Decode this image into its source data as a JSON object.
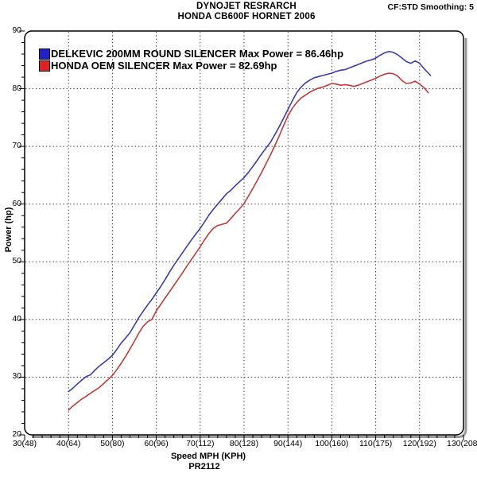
{
  "header": {
    "title": "DYNOJET RESRARCH",
    "subtitle": "HONDA CB600F HORNET 2006",
    "smoothing": "CF:STD Smoothing: 5"
  },
  "legend": [
    {
      "label": "DELKEVIC 200MM ROUND SILENCER Max Power = 86.46hp",
      "swatch_color": "#2121c8"
    },
    {
      "label": "HONDA OEM SILENCER Max Power = 82.69hp",
      "swatch_color": "#e02222"
    }
  ],
  "footer": {
    "xlabel": "Speed MPH (KPH)",
    "code": "PR2112"
  },
  "chart_data": {
    "type": "line",
    "title": "DYNOJET RESRARCH",
    "subtitle": "HONDA CB600F HORNET 2006",
    "xlabel": "Speed MPH (KPH)",
    "ylabel": "Power (hp)",
    "xlim": [
      30,
      130
    ],
    "ylim": [
      20,
      90
    ],
    "x_major_ticks": [
      30,
      40,
      50,
      60,
      70,
      80,
      90,
      100,
      110,
      120,
      130
    ],
    "x_tick_labels": [
      "30(48)",
      "40(64)",
      "50(80)",
      "60(96)",
      "70(112)",
      "80(128)",
      "90(144)",
      "100(160)",
      "110(175)",
      "120(192)",
      "130(208)"
    ],
    "y_major_ticks": [
      20,
      30,
      40,
      50,
      60,
      70,
      80,
      90
    ],
    "x_minor_step": 2,
    "y_minor_step": 2,
    "grid": "dotted major gridlines, ticks outside left and bottom axes",
    "legend_position": "top-left inside plot",
    "series": [
      {
        "name": "DELKEVIC 200MM ROUND SILENCER",
        "max_power_hp": 86.46,
        "color": "#3c3caf",
        "points": [
          [
            40,
            27.5
          ],
          [
            41,
            28.1
          ],
          [
            42,
            28.8
          ],
          [
            43,
            29.5
          ],
          [
            44,
            30.1
          ],
          [
            45,
            30.4
          ],
          [
            46,
            31.2
          ],
          [
            47,
            31.9
          ],
          [
            48,
            32.5
          ],
          [
            49,
            33.1
          ],
          [
            50,
            33.8
          ],
          [
            51,
            34.8
          ],
          [
            52,
            35.9
          ],
          [
            53,
            36.8
          ],
          [
            54,
            37.7
          ],
          [
            55,
            39.0
          ],
          [
            56,
            40.3
          ],
          [
            57,
            41.4
          ],
          [
            58,
            42.5
          ],
          [
            59,
            43.5
          ],
          [
            60,
            44.6
          ],
          [
            61,
            45.7
          ],
          [
            62,
            46.9
          ],
          [
            63,
            48.2
          ],
          [
            64,
            49.4
          ],
          [
            65,
            50.5
          ],
          [
            66,
            51.6
          ],
          [
            67,
            52.7
          ],
          [
            68,
            53.8
          ],
          [
            69,
            54.8
          ],
          [
            70,
            55.8
          ],
          [
            71,
            56.9
          ],
          [
            72,
            58.1
          ],
          [
            73,
            59.1
          ],
          [
            74,
            60.0
          ],
          [
            75,
            60.9
          ],
          [
            76,
            61.8
          ],
          [
            77,
            62.4
          ],
          [
            78,
            63.2
          ],
          [
            79,
            63.9
          ],
          [
            80,
            64.6
          ],
          [
            81,
            65.5
          ],
          [
            82,
            66.5
          ],
          [
            83,
            67.6
          ],
          [
            84,
            68.7
          ],
          [
            85,
            69.7
          ],
          [
            86,
            70.7
          ],
          [
            87,
            72.0
          ],
          [
            88,
            73.4
          ],
          [
            89,
            74.9
          ],
          [
            90,
            76.4
          ],
          [
            91,
            77.9
          ],
          [
            92,
            79.3
          ],
          [
            93,
            80.3
          ],
          [
            94,
            81.0
          ],
          [
            95,
            81.5
          ],
          [
            96,
            81.9
          ],
          [
            97,
            82.1
          ],
          [
            98,
            82.3
          ],
          [
            99,
            82.5
          ],
          [
            100,
            82.7
          ],
          [
            101,
            83.0
          ],
          [
            102,
            83.2
          ],
          [
            103,
            83.3
          ],
          [
            104,
            83.6
          ],
          [
            105,
            83.9
          ],
          [
            106,
            84.2
          ],
          [
            107,
            84.5
          ],
          [
            108,
            84.8
          ],
          [
            109,
            85.0
          ],
          [
            110,
            85.3
          ],
          [
            111,
            85.8
          ],
          [
            112,
            86.2
          ],
          [
            113,
            86.46
          ],
          [
            114,
            86.3
          ],
          [
            115,
            85.9
          ],
          [
            116,
            85.3
          ],
          [
            117,
            84.7
          ],
          [
            118,
            84.4
          ],
          [
            119,
            84.8
          ],
          [
            120,
            84.4
          ],
          [
            121,
            83.5
          ],
          [
            122,
            82.7
          ],
          [
            122.5,
            82.3
          ]
        ]
      },
      {
        "name": "HONDA OEM SILENCER",
        "max_power_hp": 82.69,
        "color": "#c43a3a",
        "points": [
          [
            40,
            24.3
          ],
          [
            41,
            25.0
          ],
          [
            42,
            25.6
          ],
          [
            43,
            26.2
          ],
          [
            44,
            26.7
          ],
          [
            45,
            27.2
          ],
          [
            46,
            27.7
          ],
          [
            47,
            28.2
          ],
          [
            48,
            28.9
          ],
          [
            49,
            29.6
          ],
          [
            50,
            30.3
          ],
          [
            51,
            31.3
          ],
          [
            52,
            32.4
          ],
          [
            53,
            33.6
          ],
          [
            54,
            34.9
          ],
          [
            55,
            36.2
          ],
          [
            56,
            37.6
          ],
          [
            57,
            38.8
          ],
          [
            58,
            39.6
          ],
          [
            59,
            40.0
          ],
          [
            60,
            41.5
          ],
          [
            61,
            42.6
          ],
          [
            62,
            43.7
          ],
          [
            63,
            44.8
          ],
          [
            64,
            45.9
          ],
          [
            65,
            47.0
          ],
          [
            66,
            48.1
          ],
          [
            67,
            49.3
          ],
          [
            68,
            50.4
          ],
          [
            69,
            51.5
          ],
          [
            70,
            52.6
          ],
          [
            71,
            53.8
          ],
          [
            72,
            54.9
          ],
          [
            73,
            55.8
          ],
          [
            74,
            56.3
          ],
          [
            75,
            56.5
          ],
          [
            76,
            56.7
          ],
          [
            77,
            57.5
          ],
          [
            78,
            58.4
          ],
          [
            79,
            59.2
          ],
          [
            80,
            60.1
          ],
          [
            81,
            61.4
          ],
          [
            82,
            62.7
          ],
          [
            83,
            64.1
          ],
          [
            84,
            65.5
          ],
          [
            85,
            67.0
          ],
          [
            86,
            68.5
          ],
          [
            87,
            70.1
          ],
          [
            88,
            71.8
          ],
          [
            89,
            73.6
          ],
          [
            90,
            75.3
          ],
          [
            91,
            76.6
          ],
          [
            92,
            77.6
          ],
          [
            93,
            78.4
          ],
          [
            94,
            78.9
          ],
          [
            95,
            79.4
          ],
          [
            96,
            79.8
          ],
          [
            97,
            80.1
          ],
          [
            98,
            80.3
          ],
          [
            99,
            80.6
          ],
          [
            100,
            80.9
          ],
          [
            101,
            80.8
          ],
          [
            102,
            80.6
          ],
          [
            103,
            80.7
          ],
          [
            104,
            80.6
          ],
          [
            105,
            80.4
          ],
          [
            106,
            80.6
          ],
          [
            107,
            80.9
          ],
          [
            108,
            81.2
          ],
          [
            109,
            81.5
          ],
          [
            110,
            81.8
          ],
          [
            111,
            82.2
          ],
          [
            112,
            82.5
          ],
          [
            113,
            82.69
          ],
          [
            114,
            82.6
          ],
          [
            115,
            82.2
          ],
          [
            116,
            81.4
          ],
          [
            117,
            80.9
          ],
          [
            118,
            81.0
          ],
          [
            119,
            81.3
          ],
          [
            120,
            80.8
          ],
          [
            121,
            80.2
          ],
          [
            122,
            79.3
          ]
        ]
      }
    ]
  }
}
